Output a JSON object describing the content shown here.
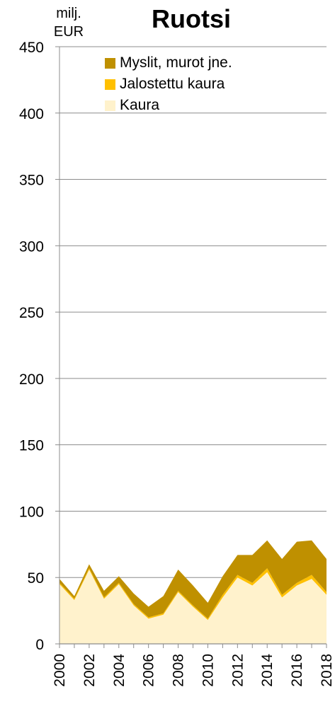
{
  "chart_data": {
    "type": "area",
    "title": "Ruotsi",
    "ylabel": "milj. EUR",
    "xlabel": "",
    "ylim": [
      0,
      450
    ],
    "yticks": [
      0,
      50,
      100,
      150,
      200,
      250,
      300,
      350,
      400,
      450
    ],
    "xticks": [
      "2000",
      "2002",
      "2004",
      "2006",
      "2008",
      "2010",
      "2012",
      "2014",
      "2016",
      "2018"
    ],
    "x": [
      2000,
      2001,
      2002,
      2003,
      2004,
      2005,
      2006,
      2007,
      2008,
      2009,
      2010,
      2011,
      2012,
      2013,
      2014,
      2015,
      2016,
      2017,
      2018
    ],
    "stacked": true,
    "grid": true,
    "legend_position": "top-right",
    "series": [
      {
        "name": "Kaura",
        "color": "#FFF2CC",
        "values": [
          45,
          33,
          56,
          34,
          45,
          29,
          19,
          22,
          39,
          28,
          18,
          35,
          50,
          44,
          54,
          35,
          44,
          49,
          37
        ]
      },
      {
        "name": "Jalostettu kaura",
        "color": "#FFC000",
        "values": [
          1,
          1,
          1,
          1,
          1,
          1,
          1,
          1,
          1,
          1,
          1,
          2,
          2,
          2,
          3,
          2,
          2,
          3,
          2
        ]
      },
      {
        "name": "Myslit, murot jne.",
        "color": "#BF9000",
        "values": [
          3,
          2,
          3,
          5,
          5,
          8,
          8,
          13,
          16,
          15,
          12,
          14,
          15,
          21,
          21,
          27,
          31,
          26,
          25
        ]
      }
    ]
  }
}
